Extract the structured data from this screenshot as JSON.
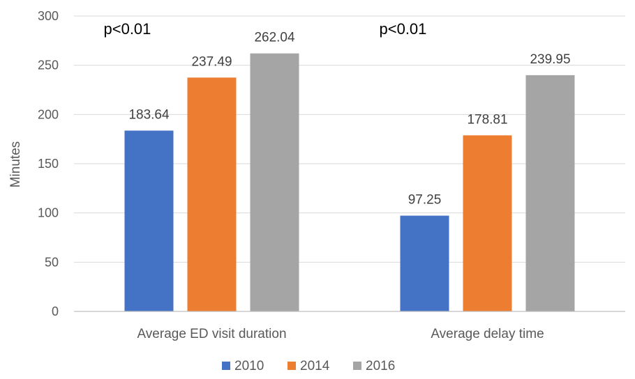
{
  "chart_data": {
    "type": "bar",
    "categories": [
      "Average ED visit duration",
      "Average delay time"
    ],
    "series": [
      {
        "name": "2010",
        "values": [
          183.64,
          97.25
        ],
        "color": "#4472c4"
      },
      {
        "name": "2014",
        "values": [
          237.49,
          178.81
        ],
        "color": "#ed7d31"
      },
      {
        "name": "2016",
        "values": [
          262.04,
          239.95
        ],
        "color": "#a5a5a5"
      }
    ],
    "data_labels": [
      [
        "183.64",
        "97.25"
      ],
      [
        "237.49",
        "178.81"
      ],
      [
        "262.04",
        "239.95"
      ]
    ],
    "annotations": [
      "p<0.01",
      "p<0.01"
    ],
    "title": "",
    "xlabel": "",
    "ylabel": "Minutes",
    "ylim": [
      0,
      300
    ],
    "yticks": [
      0,
      50,
      100,
      150,
      200,
      250,
      300
    ],
    "grid": true,
    "legend_position": "bottom"
  }
}
